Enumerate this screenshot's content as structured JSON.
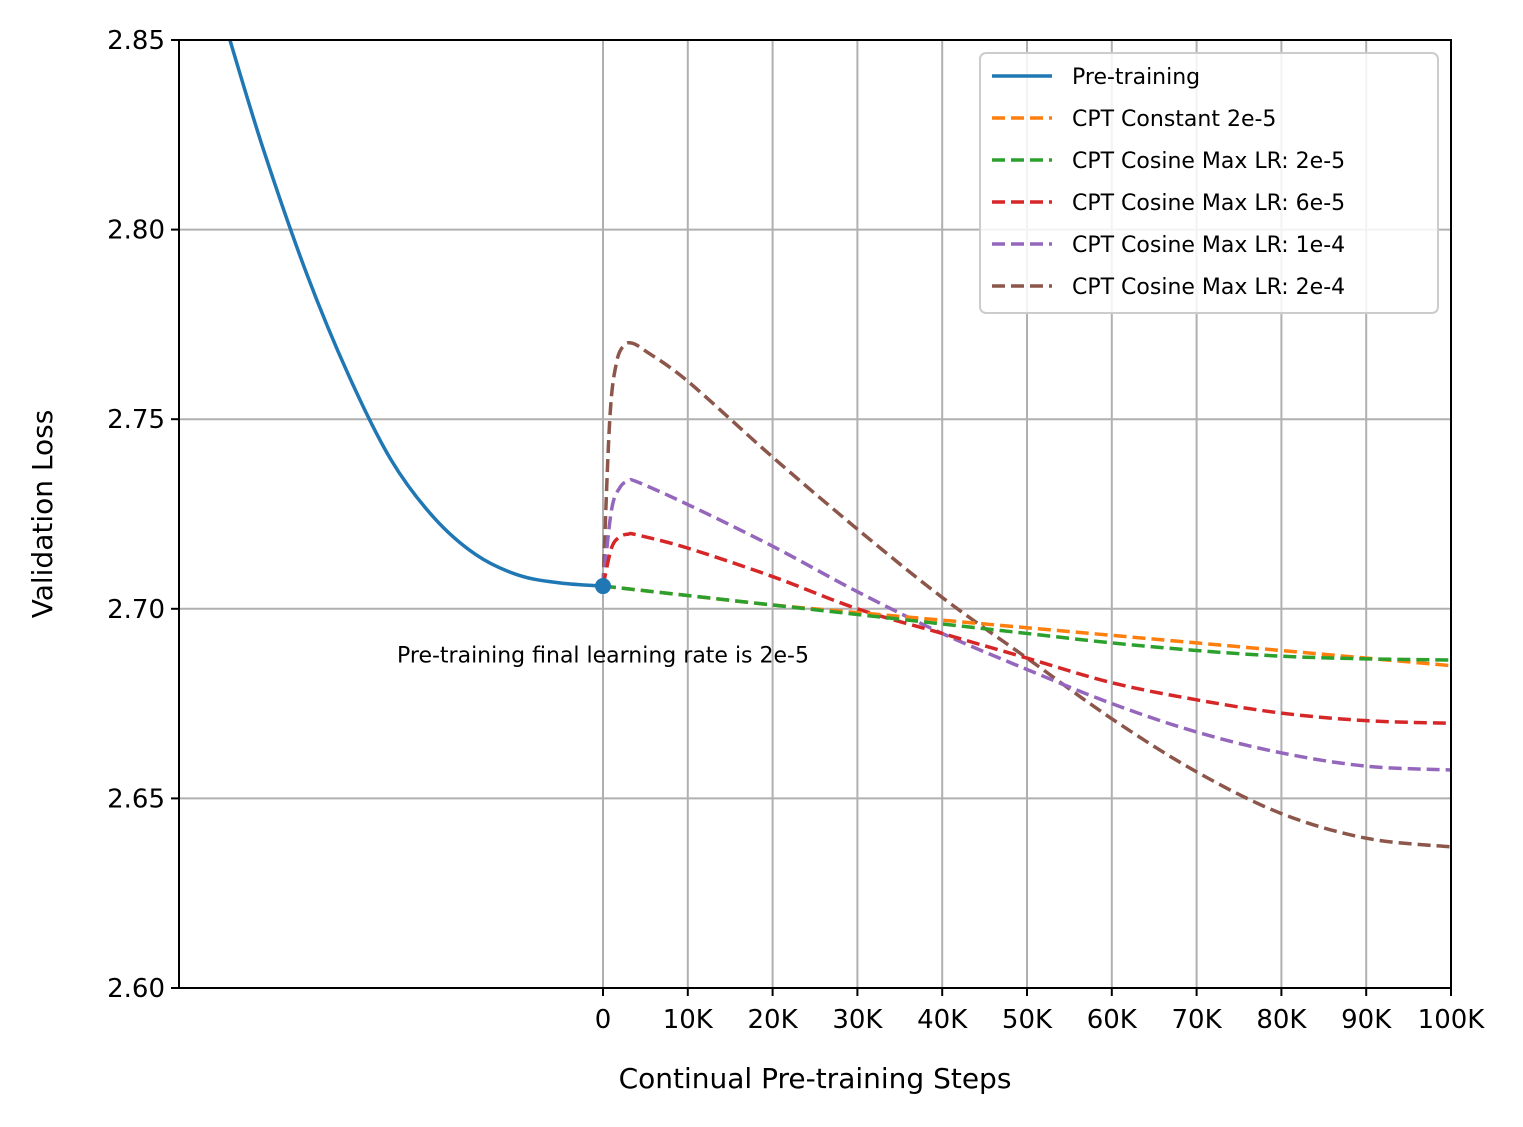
{
  "chart_data": {
    "type": "line",
    "xlabel": "Continual Pre-training Steps",
    "ylabel": "Validation Loss",
    "xlim": [
      -50000,
      100000
    ],
    "ylim": [
      2.6,
      2.85
    ],
    "x_ticks": [
      0,
      10000,
      20000,
      30000,
      40000,
      50000,
      60000,
      70000,
      80000,
      90000,
      100000
    ],
    "x_tick_labels": [
      "0",
      "10K",
      "20K",
      "30K",
      "40K",
      "50K",
      "60K",
      "70K",
      "80K",
      "90K",
      "100K"
    ],
    "y_ticks": [
      2.6,
      2.65,
      2.7,
      2.75,
      2.8,
      2.85
    ],
    "y_tick_labels": [
      "2.60",
      "2.65",
      "2.70",
      "2.75",
      "2.80",
      "2.85"
    ],
    "grid": true,
    "legend_position": "top-right",
    "annotation": {
      "text": "Pre-training final learning rate is 2e-5",
      "x": 0,
      "y": 2.688
    },
    "marker_point": {
      "x": 0,
      "y": 2.706,
      "color": "#1f77b4"
    },
    "series": [
      {
        "name": "Pre-training",
        "color": "#1f77b4",
        "dash": false,
        "x": [
          -44000,
          -40000,
          -35000,
          -30000,
          -25000,
          -20000,
          -15000,
          -10000,
          -5000,
          0
        ],
        "y": [
          2.85,
          2.8208,
          2.7887,
          2.7616,
          2.7393,
          2.7242,
          2.7143,
          2.7089,
          2.7068,
          2.706
        ]
      },
      {
        "name": "CPT Constant 2e-5",
        "color": "#ff7f0e",
        "dash": true,
        "x": [
          0,
          10000,
          20000,
          30000,
          40000,
          50000,
          60000,
          70000,
          80000,
          90000,
          100000
        ],
        "y": [
          2.706,
          2.7035,
          2.701,
          2.699,
          2.697,
          2.695,
          2.693,
          2.691,
          2.689,
          2.687,
          2.685
        ]
      },
      {
        "name": "CPT Cosine Max LR: 2e-5",
        "color": "#2ca02c",
        "dash": true,
        "x": [
          0,
          10000,
          20000,
          30000,
          40000,
          50000,
          60000,
          70000,
          80000,
          90000,
          100000
        ],
        "y": [
          2.706,
          2.7035,
          2.701,
          2.6985,
          2.696,
          2.6935,
          2.691,
          2.689,
          2.6875,
          2.6868,
          2.6865
        ]
      },
      {
        "name": "CPT Cosine Max LR: 6e-5",
        "color": "#d62728",
        "dash": true,
        "x": [
          0,
          1000,
          2000,
          3000,
          4000,
          10000,
          20000,
          30000,
          40000,
          50000,
          60000,
          70000,
          80000,
          90000,
          100000
        ],
        "y": [
          2.706,
          2.716,
          2.719,
          2.7197,
          2.7195,
          2.716,
          2.7085,
          2.7,
          2.6935,
          2.687,
          2.6805,
          2.676,
          2.6725,
          2.6705,
          2.6698
        ]
      },
      {
        "name": "CPT Cosine Max LR: 1e-4",
        "color": "#9467bd",
        "dash": true,
        "x": [
          0,
          1000,
          2000,
          3000,
          4000,
          10000,
          20000,
          30000,
          40000,
          50000,
          60000,
          70000,
          80000,
          90000,
          100000
        ],
        "y": [
          2.706,
          2.726,
          2.732,
          2.7337,
          2.7335,
          2.7275,
          2.7165,
          2.7045,
          2.6935,
          2.684,
          2.675,
          2.6675,
          2.662,
          2.6585,
          2.6575
        ]
      },
      {
        "name": "CPT Cosine Max LR: 2e-4",
        "color": "#8c564b",
        "dash": true,
        "x": [
          0,
          800,
          1600,
          2500,
          3500,
          5000,
          10000,
          20000,
          30000,
          40000,
          50000,
          60000,
          70000,
          80000,
          90000,
          100000
        ],
        "y": [
          2.706,
          2.75,
          2.765,
          2.7695,
          2.77,
          2.768,
          2.76,
          2.74,
          2.721,
          2.703,
          2.687,
          2.671,
          2.657,
          2.646,
          2.6395,
          2.6372
        ]
      }
    ]
  }
}
